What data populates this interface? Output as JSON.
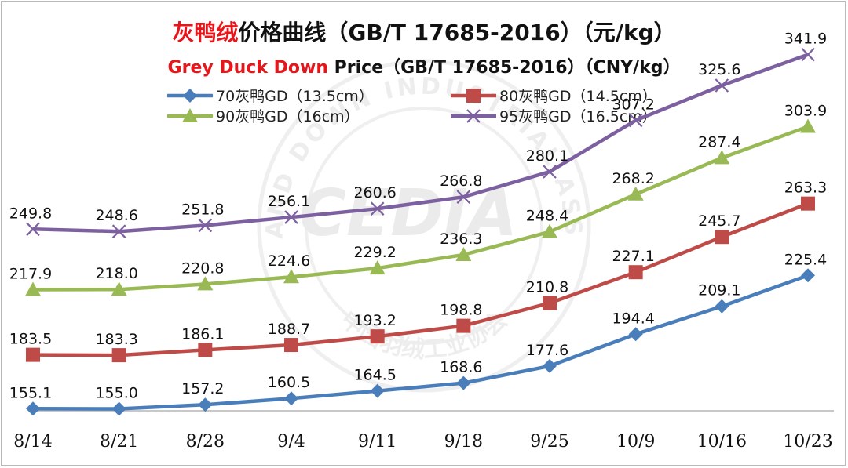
{
  "title_cn": {
    "colored": "灰鸭绒",
    "rest": "价格曲线（GB/T 17685-2016）（元/kg）"
  },
  "title_en": {
    "colored": "Grey Duck Down",
    "rest": " Price（GB/T 17685-2016）（CNY/kg）"
  },
  "watermark": {
    "text": "CEDIA",
    "ring_text": "FEATHER AND DOWN INDUSTRIAL ASSOCIATION",
    "ring_text_cn": "中国羽绒工业协会"
  },
  "chart_data": {
    "type": "line",
    "categories": [
      "8/14",
      "8/21",
      "8/28",
      "9/4",
      "9/11",
      "9/18",
      "9/25",
      "10/9",
      "10/16",
      "10/23"
    ],
    "ylim": [
      130,
      350
    ],
    "grid": false,
    "legend_position": "top",
    "series": [
      {
        "name": "70灰鸭GD（13.5cm）",
        "color": "#4a7ebb",
        "marker": "diamond",
        "values": [
          155.1,
          155.0,
          157.2,
          160.5,
          164.5,
          168.6,
          177.6,
          194.4,
          209.1,
          225.4
        ]
      },
      {
        "name": "80灰鸭GD（14.5cm）",
        "color": "#be4b48",
        "marker": "square",
        "values": [
          183.5,
          183.3,
          186.1,
          188.7,
          193.2,
          198.8,
          210.8,
          227.1,
          245.7,
          263.3
        ]
      },
      {
        "name": "90灰鸭GD（16cm）",
        "color": "#98b954",
        "marker": "triangle",
        "values": [
          217.9,
          218.0,
          220.8,
          224.6,
          229.2,
          236.3,
          248.4,
          268.2,
          287.4,
          303.9
        ]
      },
      {
        "name": "95灰鸭GD（16.5cm）",
        "color": "#7d60a0",
        "marker": "x",
        "values": [
          249.8,
          248.6,
          251.8,
          256.1,
          260.6,
          266.8,
          280.1,
          307.2,
          325.6,
          341.9
        ]
      }
    ]
  }
}
